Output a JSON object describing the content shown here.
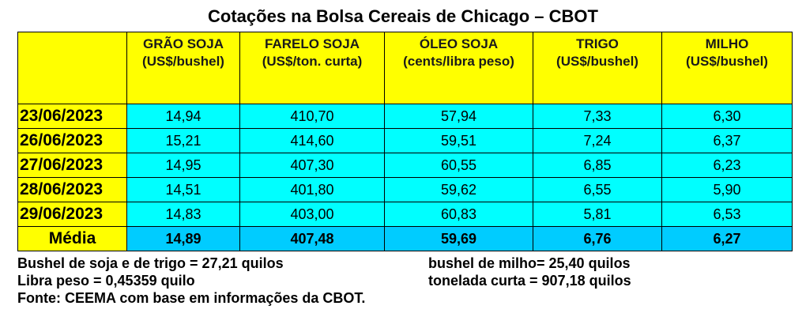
{
  "title": "Cotações na Bolsa Cereais de Chicago – CBOT",
  "columns": [
    {
      "name": "GRÃO SOJA",
      "unit": "(US$/bushel)"
    },
    {
      "name": "FARELO SOJA",
      "unit": "(US$/ton. curta)"
    },
    {
      "name": "ÓLEO SOJA",
      "unit": "(cents/libra peso)"
    },
    {
      "name": "TRIGO",
      "unit": "(US$/bushel)"
    },
    {
      "name": "MILHO",
      "unit": "(US$/bushel)"
    }
  ],
  "rows": [
    {
      "date": "23/06/2023",
      "values": [
        "14,94",
        "410,70",
        "57,94",
        "7,33",
        "6,30"
      ]
    },
    {
      "date": "26/06/2023",
      "values": [
        "15,21",
        "414,60",
        "59,51",
        "7,24",
        "6,37"
      ]
    },
    {
      "date": "27/06/2023",
      "values": [
        "14,95",
        "407,30",
        "60,55",
        "6,85",
        "6,23"
      ]
    },
    {
      "date": "28/06/2023",
      "values": [
        "14,51",
        "401,80",
        "59,62",
        "6,55",
        "5,90"
      ]
    },
    {
      "date": "29/06/2023",
      "values": [
        "14,83",
        "403,00",
        "60,83",
        "5,81",
        "6,53"
      ]
    }
  ],
  "average": {
    "label": "Média",
    "values": [
      "14,89",
      "407,48",
      "59,69",
      "6,76",
      "6,27"
    ]
  },
  "notes": {
    "bushel_soja_trigo": "Bushel de soja e de trigo = 27,21 quilos",
    "bushel_milho": "bushel de milho= 25,40 quilos",
    "libra_peso": "Libra peso = 0,45359 quilo",
    "tonelada_curta": "tonelada curta = 907,18 quilos",
    "fonte": "Fonte: CEEMA com base em informações da CBOT."
  }
}
